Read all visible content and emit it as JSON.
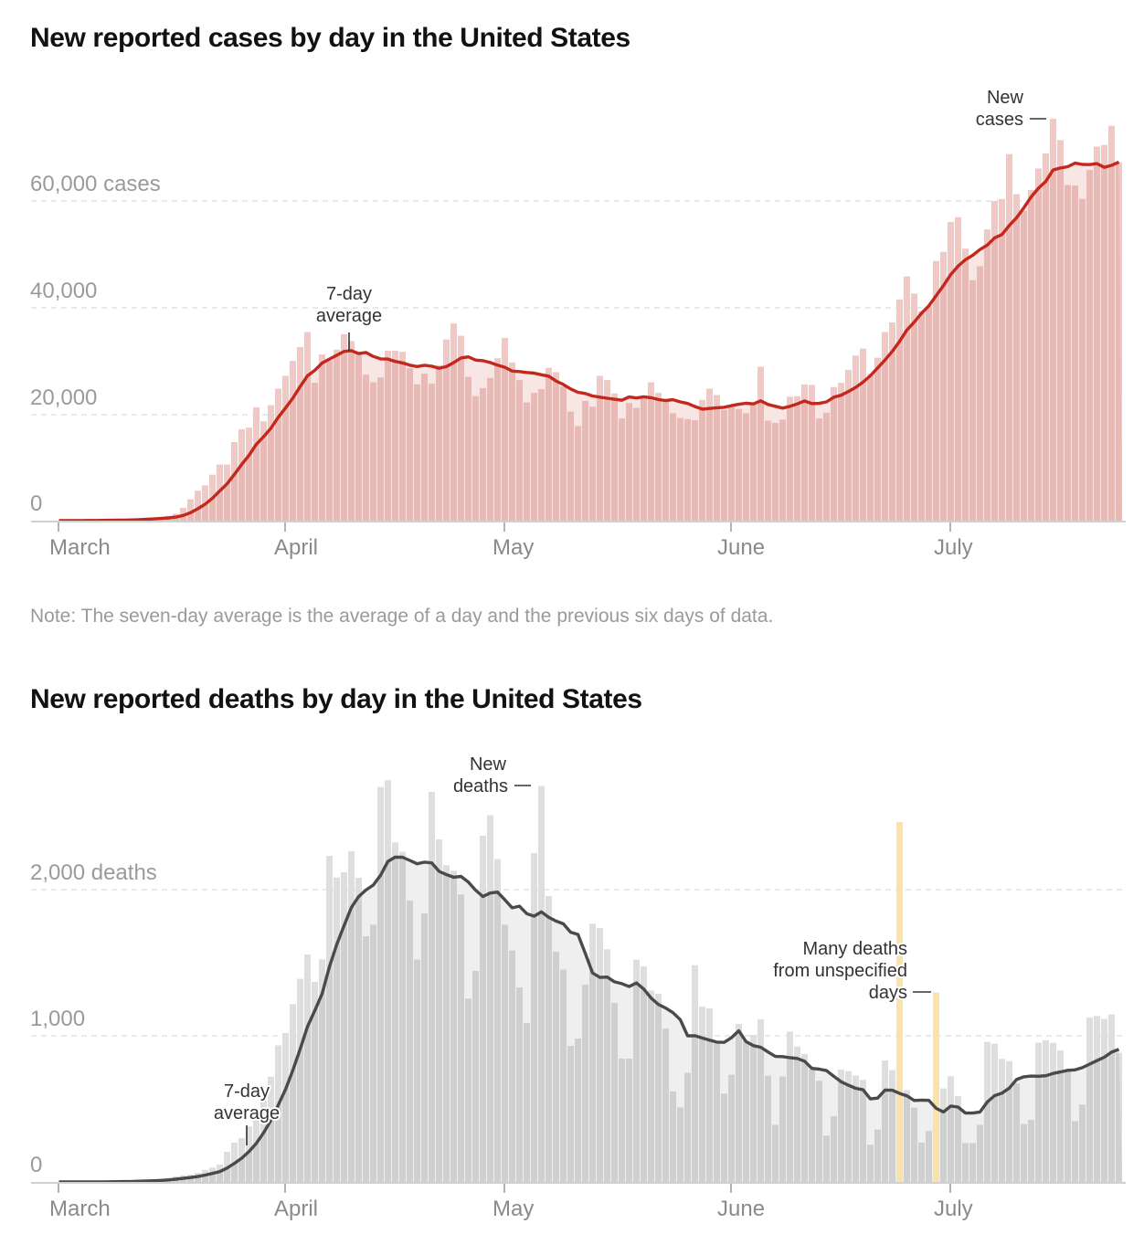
{
  "cases_chart": {
    "title": "New reported cases by day in the United States",
    "note": "Note: The seven-day average is the average of a day and the previous six days of data.",
    "y_labels": [
      "60,000 cases",
      "40,000",
      "20,000",
      "0"
    ],
    "month_labels": [
      "March",
      "April",
      "May",
      "June",
      "July"
    ],
    "annotations": {
      "avg_line1": "7-day",
      "avg_line2": "average",
      "new_line1": "New",
      "new_line2": "cases"
    }
  },
  "deaths_chart": {
    "title": "New reported deaths by day in the United States",
    "y_labels": [
      "2,000 deaths",
      "1,000",
      "0"
    ],
    "month_labels": [
      "March",
      "April",
      "May",
      "June",
      "July"
    ],
    "annotations": {
      "avg_line1": "7-day",
      "avg_line2": "average",
      "new_line1": "New",
      "new_line2": "deaths",
      "unspec_line1": "Many deaths",
      "unspec_line2": "from unspecified",
      "unspec_line3": "days"
    }
  },
  "chart_data": [
    {
      "type": "bar",
      "title": "New reported cases by day in the United States",
      "ylim": [
        0,
        76000
      ],
      "y_ticks": [
        0,
        20000,
        40000,
        60000
      ],
      "grid": true,
      "x_ticks": [
        "March",
        "April",
        "May",
        "June",
        "July"
      ],
      "colors": {
        "bar": "#f2c8c5",
        "bar_below_avg": "#ebb8b4",
        "avg_area": "#f8e6e5",
        "avg_line": "#c4281c"
      },
      "series": [
        {
          "name": "New cases",
          "values": [
            10,
            20,
            30,
            30,
            50,
            80,
            100,
            120,
            150,
            200,
            300,
            400,
            500,
            600,
            700,
            900,
            1300,
            2400,
            4000,
            5600,
            6600,
            8600,
            10500,
            10500,
            14700,
            17100,
            17400,
            21200,
            18600,
            21600,
            24700,
            27100,
            29900,
            32500,
            35300,
            25800,
            31100,
            30000,
            32000,
            34900,
            33600,
            31400,
            27300,
            25900,
            26800,
            31800,
            31800,
            31600,
            28500,
            25500,
            27500,
            25600,
            29100,
            33900,
            36900,
            34600,
            26900,
            23300,
            24800,
            26700,
            30400,
            34200,
            29600,
            26300,
            22100,
            23900,
            24600,
            28600,
            27800,
            25100,
            20400,
            17700,
            22400,
            21300,
            27100,
            26300,
            23800,
            19100,
            22000,
            21100,
            22900,
            25900,
            23900,
            22500,
            20100,
            19200,
            19000,
            18800,
            22600,
            24700,
            23500,
            20700,
            21300,
            20900,
            20100,
            21700,
            28800,
            18700,
            18300,
            18900,
            23200,
            23300,
            25500,
            25400,
            19100,
            20200,
            25000,
            25800,
            28200,
            30900,
            32200,
            27500,
            30500,
            35300,
            37100,
            41400,
            45700,
            42500,
            39200,
            40100,
            48600,
            50300,
            55900,
            56800,
            50900,
            45000,
            47600,
            54500,
            59800,
            60200,
            68600,
            61100,
            58000,
            61900,
            65900,
            68700,
            75200,
            71200,
            62800,
            62700,
            60200,
            65600,
            70000,
            70300,
            73900,
            67100
          ]
        },
        {
          "name": "7-day average",
          "derived_from": "New cases",
          "window_days": 7
        }
      ]
    },
    {
      "type": "bar",
      "title": "New reported deaths by day in the United States",
      "ylim": [
        0,
        2800
      ],
      "y_ticks": [
        0,
        1000,
        2000
      ],
      "grid": true,
      "x_ticks": [
        "March",
        "April",
        "May",
        "June",
        "July"
      ],
      "colors": {
        "bar": "#dedede",
        "bar_below_avg": "#cfcfcf",
        "avg_area": "#efefef",
        "avg_line": "#4a4a4a",
        "highlight": "#fbe2a8"
      },
      "highlight_indices": [
        115,
        120
      ],
      "series": [
        {
          "name": "New deaths",
          "values": [
            0,
            0,
            0,
            0,
            1,
            2,
            2,
            3,
            4,
            5,
            7,
            10,
            12,
            15,
            20,
            28,
            38,
            46,
            50,
            62,
            83,
            98,
            119,
            206,
            269,
            300,
            380,
            480,
            600,
            720,
            935,
            1019,
            1217,
            1390,
            1556,
            1369,
            1523,
            2231,
            2083,
            2119,
            2263,
            2081,
            1681,
            1760,
            2702,
            2748,
            2323,
            2260,
            1925,
            1521,
            1838,
            2669,
            2344,
            2167,
            2129,
            1967,
            1254,
            1444,
            2369,
            2510,
            2210,
            1760,
            1583,
            1331,
            1088,
            2250,
            2710,
            1956,
            1575,
            1452,
            931,
            981,
            1350,
            1767,
            1738,
            1592,
            1225,
            844,
            844,
            1521,
            1475,
            1310,
            1288,
            1050,
            619,
            510,
            746,
            1483,
            1200,
            1188,
            952,
            604,
            733,
            1081,
            963,
            1006,
            1113,
            727,
            390,
            721,
            1029,
            927,
            875,
            771,
            692,
            317,
            450,
            769,
            758,
            729,
            698,
            254,
            358,
            831,
            765,
            2462,
            629,
            508,
            269,
            348,
            1296,
            640,
            723,
            588,
            265,
            265,
            390,
            958,
            946,
            842,
            827,
            675,
            396,
            425,
            952,
            969,
            952,
            900,
            754,
            415,
            529,
            1125,
            1135,
            1115,
            1146,
            883
          ]
        },
        {
          "name": "7-day average",
          "derived_from": "New deaths",
          "window_days": 7
        }
      ]
    }
  ]
}
